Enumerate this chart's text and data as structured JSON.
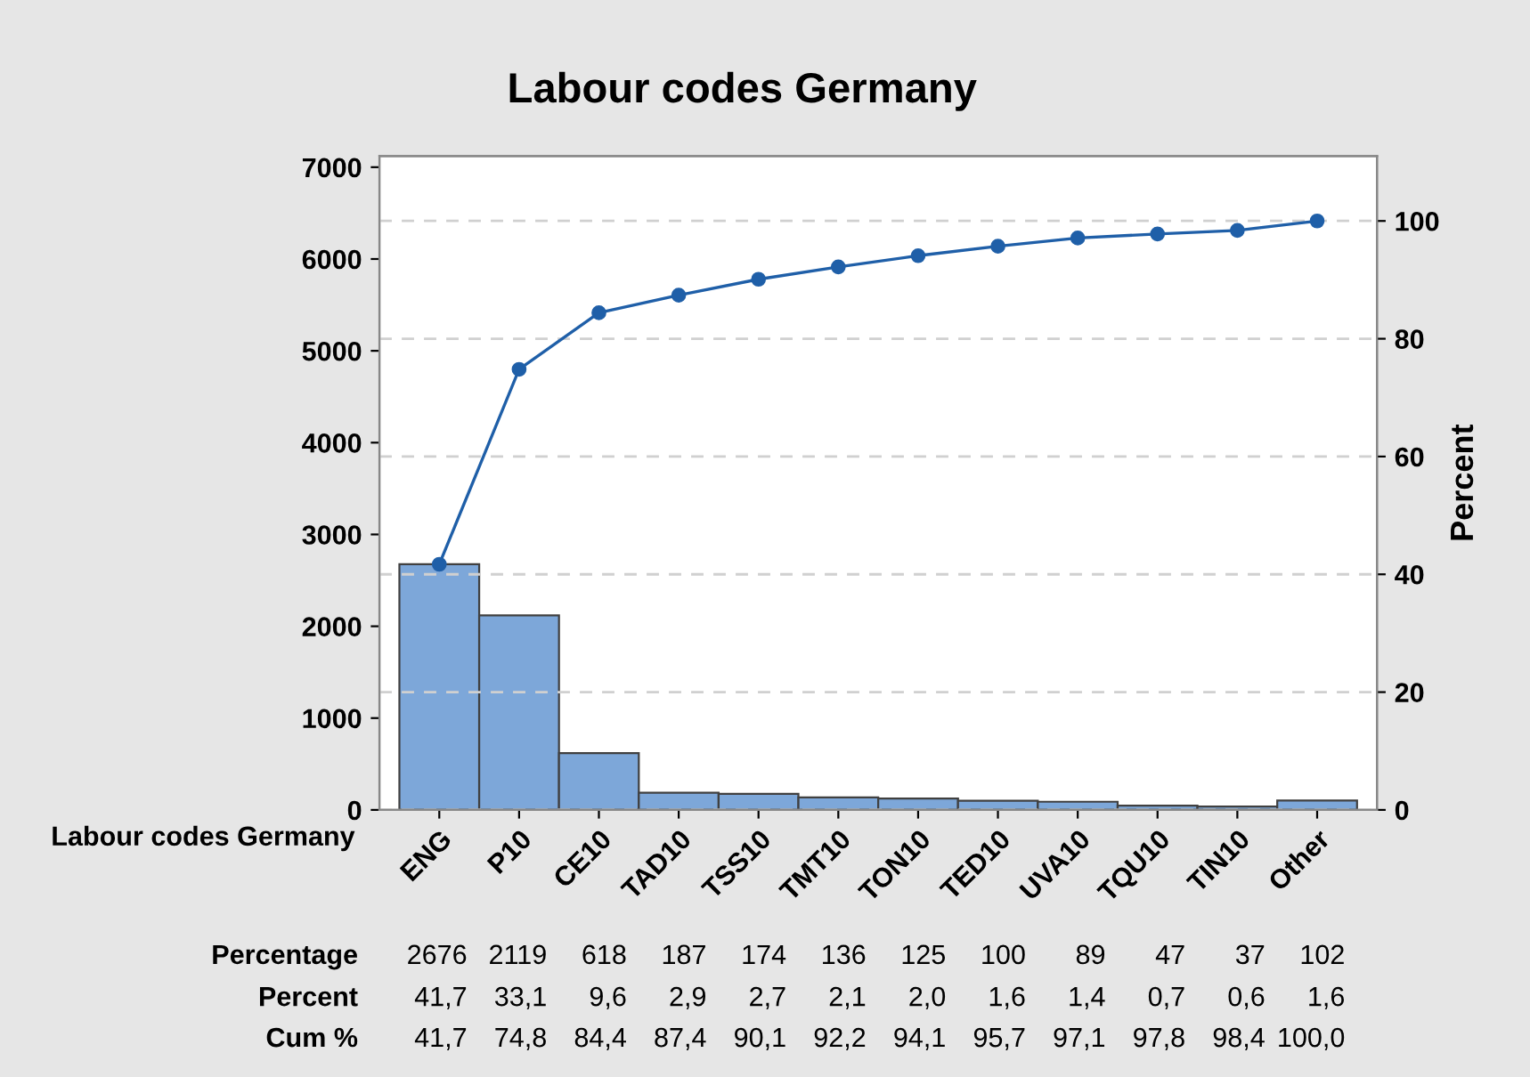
{
  "chart_data": {
    "type": "bar",
    "title": "Labour codes Germany",
    "xlabel": "Labour codes Germany",
    "y2label": "Percent",
    "categories": [
      "ENG",
      "P10",
      "CE10",
      "TAD10",
      "TSS10",
      "TMT10",
      "TON10",
      "TED10",
      "UVA10",
      "TQU10",
      "TIN10",
      "Other"
    ],
    "series": [
      {
        "color": "#7da7d9",
        "values": [
          2676,
          2119,
          618,
          187,
          174,
          136,
          125,
          100,
          89,
          47,
          37,
          102
        ],
        "value_labels": [
          "2676",
          "2119",
          "618",
          "187",
          "174",
          "136",
          "125",
          "100",
          "89",
          "47",
          "37",
          "102"
        ]
      },
      {
        "type": "line",
        "axis": "y2",
        "color": "#1f5fa8",
        "marker": "circle",
        "values": [
          41.7,
          74.8,
          84.4,
          87.4,
          90.1,
          92.2,
          94.1,
          95.7,
          97.1,
          97.8,
          98.4,
          100.0
        ],
        "value_labels": [
          "41,7",
          "74,8",
          "84,4",
          "87,4",
          "90,1",
          "92,2",
          "94,1",
          "95,7",
          "97,1",
          "97,8",
          "98,4",
          "100,0"
        ]
      }
    ],
    "annotations": [
      "Percentage",
      "Cum %",
      "Percent",
      "41,7",
      "33,1",
      "9,6",
      "2,9",
      "2,7",
      "2,1",
      "2,0",
      "1,6",
      "1,4",
      "0,7",
      "0,6",
      "1,6"
    ],
    "ylim": [
      0,
      7120
    ],
    "yticks": [
      0,
      1000,
      2000,
      3000,
      4000,
      5000,
      6000,
      7000
    ],
    "y2lim": [
      0,
      111
    ],
    "y2ticks": [
      0,
      20,
      40,
      60,
      80,
      100
    ],
    "grid": "y2",
    "legend": false
  }
}
